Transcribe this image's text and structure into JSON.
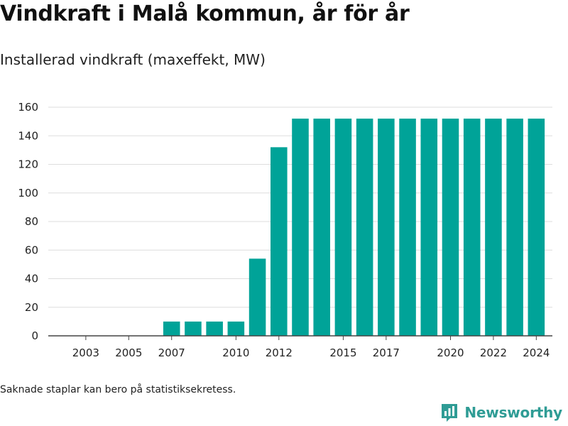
{
  "header": {
    "title": "Vindkraft i Malå kommun, år för år",
    "subtitle": "Installerad vindkraft (maxeffekt, MW)"
  },
  "footer": {
    "note": "Saknade staplar kan bero på statistiksekretess.",
    "brand": "Newsworthy"
  },
  "colors": {
    "bar": "#00a398",
    "brand": "#2f9c95"
  },
  "chart_data": {
    "type": "bar",
    "categories": [
      "2002",
      "2003",
      "2004",
      "2005",
      "2006",
      "2007",
      "2008",
      "2009",
      "2010",
      "2011",
      "2012",
      "2013",
      "2014",
      "2015",
      "2016",
      "2017",
      "2018",
      "2019",
      "2020",
      "2021",
      "2022",
      "2023",
      "2024"
    ],
    "values": [
      0,
      0,
      0,
      0,
      0,
      10,
      10,
      10,
      10,
      54,
      132,
      152,
      152,
      152,
      152,
      152,
      152,
      152,
      152,
      152,
      152,
      152,
      152
    ],
    "x_tick_labels": [
      "2003",
      "2005",
      "2007",
      "2010",
      "2012",
      "2015",
      "2017",
      "2020",
      "2022",
      "2024"
    ],
    "y_ticks": [
      0,
      20,
      40,
      60,
      80,
      100,
      120,
      140,
      160
    ],
    "ylim": [
      0,
      160
    ],
    "grid": true,
    "legend": "none"
  }
}
